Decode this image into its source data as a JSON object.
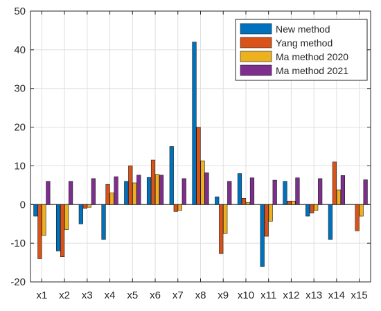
{
  "chart_data": {
    "type": "bar",
    "title": "",
    "xlabel": "",
    "ylabel": "",
    "categories": [
      "x1",
      "x2",
      "x3",
      "x4",
      "x5",
      "x6",
      "x7",
      "x8",
      "x9",
      "x10",
      "x11",
      "x12",
      "x13",
      "x14",
      "x15"
    ],
    "ylim": [
      -20,
      50
    ],
    "yticks": [
      -20,
      -10,
      0,
      10,
      20,
      30,
      40,
      50
    ],
    "grid": true,
    "legend_position": "top-right",
    "series": [
      {
        "name": "New method",
        "color": "#0072BD",
        "values": [
          -3,
          -12,
          -5,
          -9,
          6,
          7,
          15,
          42,
          2,
          8,
          -16,
          6,
          -3,
          -9,
          0
        ]
      },
      {
        "name": "Yang method",
        "color": "#D95319",
        "values": [
          -14,
          -13.5,
          -1,
          5.2,
          10,
          11.5,
          -1.8,
          20,
          -12.7,
          1.6,
          -8.2,
          0.9,
          -2.2,
          11,
          -6.8
        ]
      },
      {
        "name": "Ma method 2020",
        "color": "#EDB120",
        "values": [
          -8,
          -6.5,
          -0.7,
          3,
          5.6,
          7.8,
          -1.5,
          11.3,
          -7.5,
          0.5,
          -4.3,
          0.9,
          -1.5,
          3.8,
          -3
        ]
      },
      {
        "name": "Ma method 2021",
        "color": "#7E2F8E",
        "values": [
          6,
          6,
          6.7,
          7.2,
          7.6,
          7.6,
          6.7,
          8.2,
          6,
          6.9,
          6.3,
          6.9,
          6.7,
          7.5,
          6.4
        ]
      }
    ]
  }
}
